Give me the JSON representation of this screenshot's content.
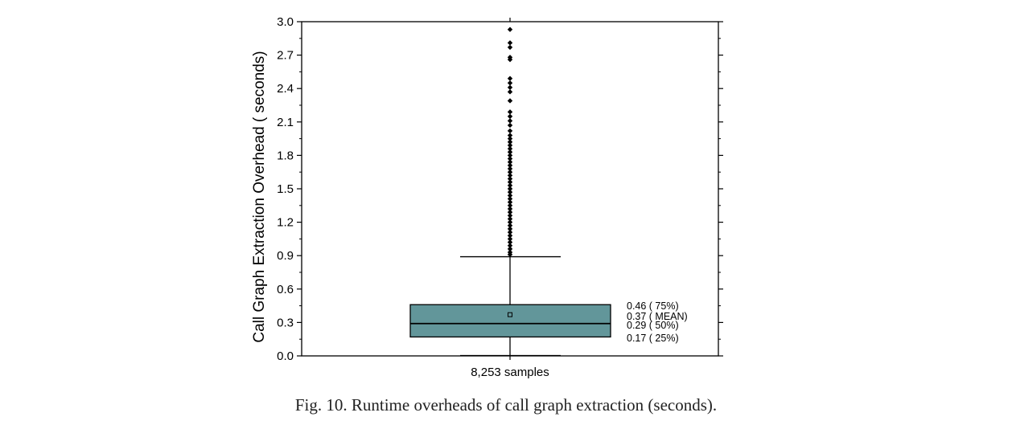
{
  "caption": "Fig. 10.  Runtime overheads of call graph extraction (seconds).",
  "colors": {
    "box_fill": "#62969a",
    "stroke": "#000000"
  },
  "chart_data": {
    "type": "box",
    "ylabel": "Call Graph Extraction Overhead  ( seconds)",
    "xlabel": "",
    "categories": [
      "8,253 samples"
    ],
    "ylim": [
      0.0,
      3.0
    ],
    "yticks": [
      "0.0",
      "0.3",
      "0.6",
      "0.9",
      "1.2",
      "1.5",
      "1.8",
      "2.1",
      "2.4",
      "2.7",
      "3.0"
    ],
    "box": {
      "q1": 0.17,
      "median": 0.29,
      "q3": 0.46,
      "mean": 0.37,
      "whisker_low": 0.0,
      "whisker_high": 0.89
    },
    "annotations": [
      {
        "value": 0.46,
        "label": "0.46 ( 75%)"
      },
      {
        "value": 0.37,
        "label": "0.37 ( MEAN)"
      },
      {
        "value": 0.29,
        "label": "0.29 ( 50%)"
      },
      {
        "value": 0.17,
        "label": "0.17 ( 25%)"
      }
    ],
    "outliers": [
      2.93,
      2.81,
      2.77,
      2.68,
      2.66,
      2.49,
      2.45,
      2.41,
      2.37,
      2.29,
      2.19,
      2.15,
      2.11,
      2.07,
      2.02,
      1.98,
      1.95,
      1.92,
      1.89,
      1.86,
      1.83,
      1.8,
      1.77,
      1.74,
      1.71,
      1.68,
      1.65,
      1.62,
      1.59,
      1.56,
      1.53,
      1.5,
      1.47,
      1.44,
      1.41,
      1.38,
      1.35,
      1.32,
      1.29,
      1.26,
      1.23,
      1.2,
      1.17,
      1.14,
      1.11,
      1.08,
      1.05,
      1.02,
      0.99,
      0.96,
      0.93,
      0.91
    ]
  }
}
